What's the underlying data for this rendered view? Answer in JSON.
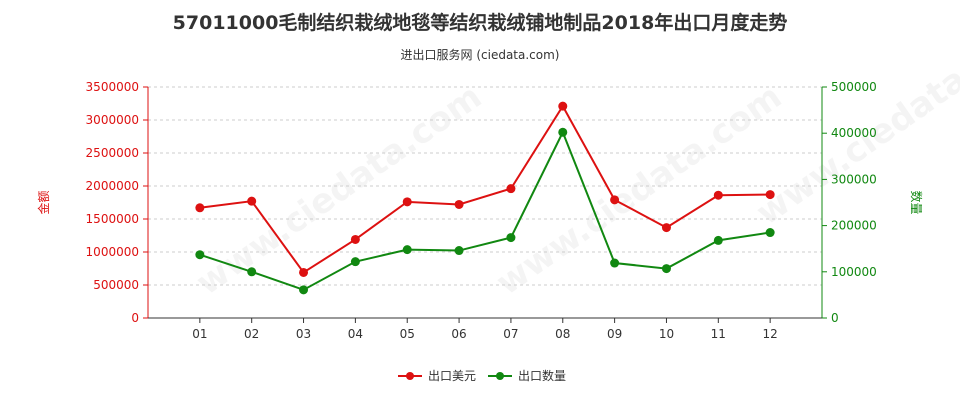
{
  "title": "57011000毛制结织栽绒地毯等结织栽绒铺地制品2018年出口月度走势",
  "subtitle": "进出口服务网 (ciedata.com)",
  "watermark": "www.ciedata.com",
  "chart_data": {
    "type": "line",
    "categories": [
      "01",
      "02",
      "03",
      "04",
      "05",
      "06",
      "07",
      "08",
      "09",
      "10",
      "11",
      "12"
    ],
    "series": [
      {
        "name": "出口美元",
        "axis": "left",
        "color": "#dd1111",
        "values": [
          1670000,
          1770000,
          690000,
          1190000,
          1760000,
          1720000,
          1960000,
          3210000,
          1790000,
          1370000,
          1860000,
          1870000
        ]
      },
      {
        "name": "出口数量",
        "axis": "right",
        "color": "#118811",
        "values": [
          137000,
          100000,
          61000,
          122000,
          148000,
          146000,
          174000,
          402000,
          119000,
          107000,
          168000,
          185000
        ]
      }
    ],
    "y_left": {
      "label": "金额",
      "range": [
        0,
        3500000
      ],
      "ticks": [
        "0",
        "500000",
        "1000000",
        "1500000",
        "2000000",
        "2500000",
        "3000000",
        "3500000"
      ],
      "color": "#dd1111"
    },
    "y_right": {
      "label": "数量",
      "range": [
        0,
        500000
      ],
      "ticks": [
        "0",
        "100000",
        "200000",
        "300000",
        "400000",
        "500000"
      ],
      "color": "#118811"
    },
    "grid": "horizontal-dashed",
    "legend_position": "bottom-center"
  }
}
